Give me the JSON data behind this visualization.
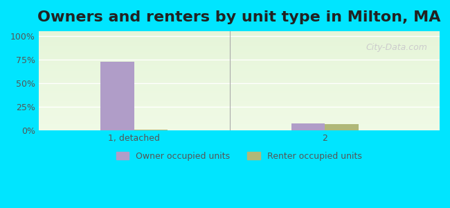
{
  "title": "Owners and renters by unit type in Milton, MA",
  "categories": [
    "1, detached",
    "2"
  ],
  "owner_values": [
    73,
    8
  ],
  "renter_values": [
    1,
    7
  ],
  "owner_color": "#b09dc8",
  "renter_color": "#b0b878",
  "yticks": [
    0,
    25,
    50,
    75,
    100
  ],
  "ytick_labels": [
    "0%",
    "25%",
    "50%",
    "75%",
    "100%"
  ],
  "ylim": [
    0,
    105
  ],
  "background_top": "#e8f5e8",
  "background_bottom": "#f0ffe0",
  "outer_bg": "#00e5ff",
  "watermark": "City-Data.com",
  "legend_owner": "Owner occupied units",
  "legend_renter": "Renter occupied units",
  "title_fontsize": 16,
  "bar_width": 0.35,
  "group_positions": [
    1,
    3
  ]
}
